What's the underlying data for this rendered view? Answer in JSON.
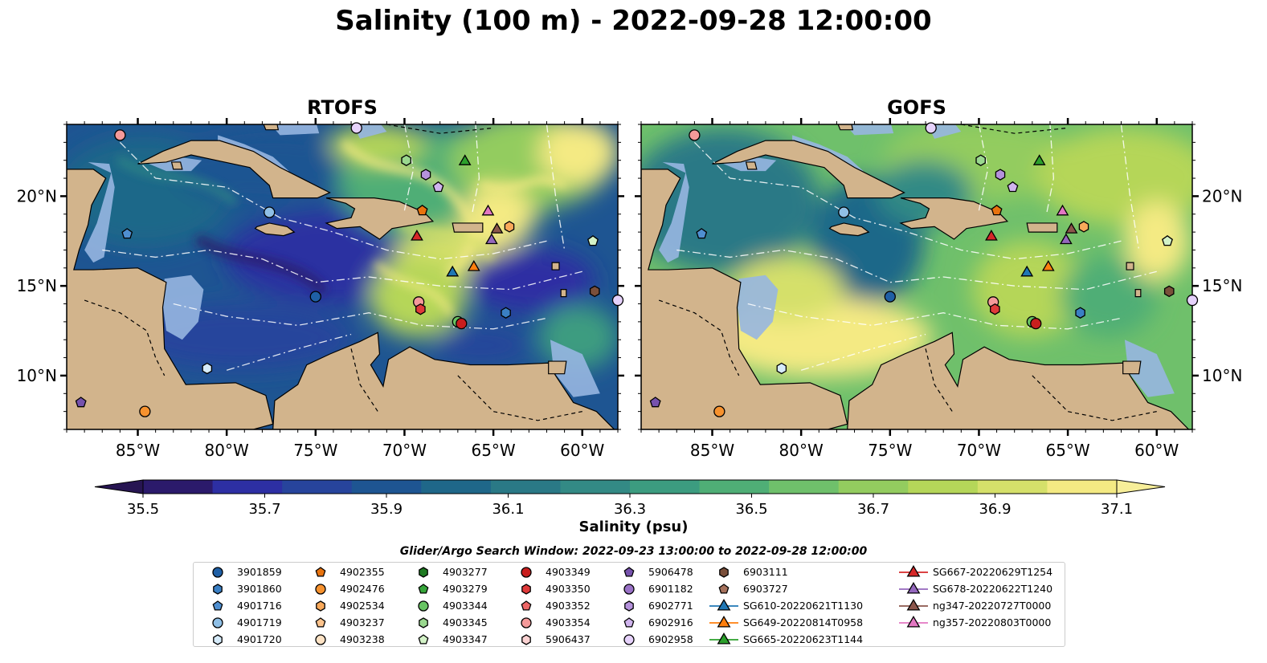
{
  "title": "Salinity (100 m) - 2022-09-28 12:00:00",
  "panels": [
    {
      "id": "rtofs",
      "title": "RTOFS"
    },
    {
      "id": "gofs",
      "title": "GOFS"
    }
  ],
  "map": {
    "lon_range": [
      -89,
      -58
    ],
    "lat_range": [
      7,
      24
    ],
    "lon_ticks": [
      -85,
      -80,
      -75,
      -70,
      -65,
      -60
    ],
    "lon_tick_labels": [
      "85°W",
      "80°W",
      "75°W",
      "70°W",
      "65°W",
      "60°W"
    ],
    "lat_ticks": [
      10,
      15,
      20
    ],
    "lat_tick_labels": [
      "10°N",
      "15°N",
      "20°N"
    ],
    "land_color": "#d2b48c",
    "shallow_color": "#97b6e1"
  },
  "colorbar": {
    "label": "Salinity (psu)",
    "min": 35.5,
    "max": 37.1,
    "ticks": [
      35.5,
      35.7,
      35.9,
      36.1,
      36.3,
      36.5,
      36.7,
      36.9,
      37.1
    ],
    "tick_labels": [
      "35.5",
      "35.7",
      "35.9",
      "36.1",
      "36.3",
      "36.5",
      "36.7",
      "36.9",
      "37.1"
    ],
    "colors": [
      "#2b1a6b",
      "#2d2fa3",
      "#27449c",
      "#1e5592",
      "#1f6789",
      "#2a7986",
      "#338a85",
      "#3c9c80",
      "#4fae76",
      "#6fc06b",
      "#93cc5f",
      "#b5d659",
      "#d5e06a",
      "#f4ea83"
    ],
    "extend_low": "#271552",
    "extend_high": "#f7ee99"
  },
  "legend": {
    "title": "Glider/Argo Search Window: 2022-09-23 13:00:00 to 2022-09-28 12:00:00",
    "columns": [
      [
        {
          "label": "3901859",
          "marker": "circle",
          "color": "#1f5fa5"
        },
        {
          "label": "3901860",
          "marker": "hexagon",
          "color": "#3a7fc4"
        },
        {
          "label": "4901716",
          "marker": "pentagon",
          "color": "#4f8fd0"
        },
        {
          "label": "4901719",
          "marker": "circle",
          "color": "#8fbfe6"
        },
        {
          "label": "4901720",
          "marker": "hexagon",
          "color": "#d6ebfa"
        }
      ],
      [
        {
          "label": "4902355",
          "marker": "pentagon",
          "color": "#e8730e"
        },
        {
          "label": "4902476",
          "marker": "circle",
          "color": "#f7922e"
        },
        {
          "label": "4902534",
          "marker": "hexagon",
          "color": "#f9a95a"
        },
        {
          "label": "4903237",
          "marker": "pentagon",
          "color": "#fcc38c"
        },
        {
          "label": "4903238",
          "marker": "circle",
          "color": "#fde2c4"
        }
      ],
      [
        {
          "label": "4903277",
          "marker": "hexagon",
          "color": "#1e7a22"
        },
        {
          "label": "4903279",
          "marker": "pentagon",
          "color": "#36a53a"
        },
        {
          "label": "4903344",
          "marker": "circle",
          "color": "#68c463"
        },
        {
          "label": "4903345",
          "marker": "hexagon",
          "color": "#9ad88f"
        },
        {
          "label": "4903347",
          "marker": "pentagon",
          "color": "#d3f2c7"
        }
      ],
      [
        {
          "label": "4903349",
          "marker": "circle",
          "color": "#c81e1e"
        },
        {
          "label": "4903350",
          "marker": "hexagon",
          "color": "#e03a3a"
        },
        {
          "label": "4903352",
          "marker": "pentagon",
          "color": "#ec6666"
        },
        {
          "label": "4903354",
          "marker": "circle",
          "color": "#f49a9a"
        },
        {
          "label": "5906437",
          "marker": "hexagon",
          "color": "#fbd2d2"
        }
      ],
      [
        {
          "label": "5906478",
          "marker": "pentagon",
          "color": "#7652ad"
        },
        {
          "label": "6901182",
          "marker": "circle",
          "color": "#9a72c7"
        },
        {
          "label": "6902771",
          "marker": "hexagon",
          "color": "#b592dc"
        },
        {
          "label": "6902916",
          "marker": "pentagon",
          "color": "#d0b4ee"
        },
        {
          "label": "6902958",
          "marker": "circle",
          "color": "#e6d2fb"
        }
      ],
      [
        {
          "label": "6903111",
          "marker": "hexagon",
          "color": "#7a4f3a"
        },
        {
          "label": "6903727",
          "marker": "pentagon",
          "color": "#a5715c"
        },
        {
          "label": "SG610-20220621T1130",
          "marker": "triangle",
          "color": "#1f77b4"
        },
        {
          "label": "SG649-20220814T0958",
          "marker": "triangle",
          "color": "#ff7f0e"
        },
        {
          "label": "SG665-20220623T1144",
          "marker": "triangle",
          "color": "#2ca02c"
        }
      ],
      [
        {
          "label": "SG667-20220629T1254",
          "marker": "triangle",
          "color": "#d62728"
        },
        {
          "label": "SG678-20220622T1240",
          "marker": "triangle",
          "color": "#9467bd"
        },
        {
          "label": "ng347-20220727T0000",
          "marker": "triangle",
          "color": "#8c564b"
        },
        {
          "label": "ng357-20220803T0000",
          "marker": "triangle",
          "color": "#e377c2"
        }
      ]
    ]
  },
  "points": [
    {
      "lon": -86.0,
      "lat": 23.4,
      "marker": "circle",
      "color": "#f49a9a"
    },
    {
      "lon": -72.7,
      "lat": 23.8,
      "marker": "circle",
      "color": "#e6d2fb"
    },
    {
      "lon": -69.9,
      "lat": 22.0,
      "marker": "hexagon",
      "color": "#9ad88f"
    },
    {
      "lon": -68.8,
      "lat": 21.2,
      "marker": "hexagon",
      "color": "#b592dc"
    },
    {
      "lon": -68.1,
      "lat": 20.5,
      "marker": "pentagon",
      "color": "#d0b4ee"
    },
    {
      "lon": -66.6,
      "lat": 22.0,
      "marker": "triangle",
      "color": "#2ca02c"
    },
    {
      "lon": -77.6,
      "lat": 19.1,
      "marker": "circle",
      "color": "#8fbfe6"
    },
    {
      "lon": -85.6,
      "lat": 17.9,
      "marker": "pentagon",
      "color": "#4f8fd0"
    },
    {
      "lon": -69.0,
      "lat": 19.2,
      "marker": "pentagon",
      "color": "#e8730e"
    },
    {
      "lon": -69.3,
      "lat": 17.8,
      "marker": "triangle",
      "color": "#d62728"
    },
    {
      "lon": -65.3,
      "lat": 19.2,
      "marker": "triangle",
      "color": "#e377c2"
    },
    {
      "lon": -64.8,
      "lat": 18.2,
      "marker": "triangle",
      "color": "#8c564b"
    },
    {
      "lon": -65.1,
      "lat": 17.6,
      "marker": "triangle",
      "color": "#9467bd"
    },
    {
      "lon": -64.1,
      "lat": 18.3,
      "marker": "hexagon",
      "color": "#f9a95a"
    },
    {
      "lon": -59.4,
      "lat": 17.5,
      "marker": "pentagon",
      "color": "#d3f2c7"
    },
    {
      "lon": -57.3,
      "lat": 18.0,
      "marker": "pentagon",
      "color": "#ec6666"
    },
    {
      "lon": -67.3,
      "lat": 15.8,
      "marker": "triangle",
      "color": "#1f77b4"
    },
    {
      "lon": -66.1,
      "lat": 16.1,
      "marker": "triangle",
      "color": "#ff7f0e"
    },
    {
      "lon": -75.0,
      "lat": 14.4,
      "marker": "circle",
      "color": "#1f5fa5"
    },
    {
      "lon": -69.2,
      "lat": 14.1,
      "marker": "circle",
      "color": "#f49a9a"
    },
    {
      "lon": -69.1,
      "lat": 13.7,
      "marker": "hexagon",
      "color": "#e03a3a"
    },
    {
      "lon": -67.0,
      "lat": 13.0,
      "marker": "circle",
      "color": "#68c463"
    },
    {
      "lon": -66.8,
      "lat": 12.9,
      "marker": "circle",
      "color": "#c81e1e"
    },
    {
      "lon": -64.3,
      "lat": 13.5,
      "marker": "hexagon",
      "color": "#3a7fc4"
    },
    {
      "lon": -59.3,
      "lat": 14.7,
      "marker": "hexagon",
      "color": "#7a4f3a"
    },
    {
      "lon": -58.0,
      "lat": 14.2,
      "marker": "circle",
      "color": "#e6d2fb"
    },
    {
      "lon": -81.1,
      "lat": 10.4,
      "marker": "hexagon",
      "color": "#d6ebfa"
    },
    {
      "lon": -88.2,
      "lat": 8.5,
      "marker": "pentagon",
      "color": "#7652ad"
    },
    {
      "lon": -84.6,
      "lat": 8.0,
      "marker": "circle",
      "color": "#f7922e"
    }
  ]
}
